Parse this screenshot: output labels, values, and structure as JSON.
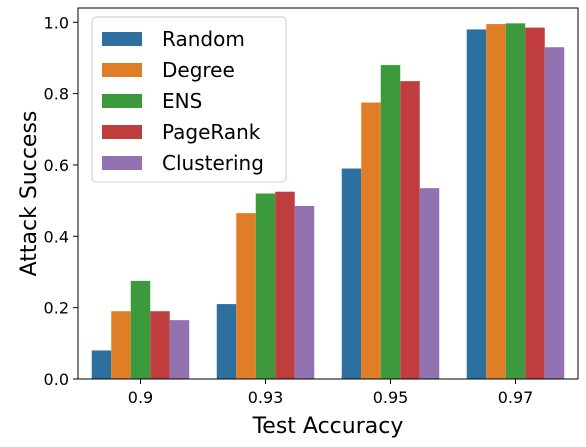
{
  "chart_data": {
    "type": "bar",
    "title": "",
    "xlabel": "Test Accuracy",
    "ylabel": "Attack Success",
    "categories": [
      "0.9",
      "0.93",
      "0.95",
      "0.97"
    ],
    "ylim": [
      0,
      1.04
    ],
    "yticks": [
      "0.0",
      "0.2",
      "0.4",
      "0.6",
      "0.8",
      "1.0"
    ],
    "grid": false,
    "legend_position": "top-left",
    "series": [
      {
        "name": "Random",
        "color": "#2d6f9f",
        "values": [
          0.08,
          0.21,
          0.59,
          0.98
        ]
      },
      {
        "name": "Degree",
        "color": "#e07e27",
        "values": [
          0.19,
          0.465,
          0.775,
          0.995
        ]
      },
      {
        "name": "ENS",
        "color": "#3c9a3c",
        "values": [
          0.275,
          0.52,
          0.88,
          0.997
        ]
      },
      {
        "name": "PageRank",
        "color": "#c03d3e",
        "values": [
          0.19,
          0.525,
          0.835,
          0.985
        ]
      },
      {
        "name": "Clustering",
        "color": "#9372b2",
        "values": [
          0.165,
          0.485,
          0.535,
          0.93
        ]
      }
    ]
  }
}
